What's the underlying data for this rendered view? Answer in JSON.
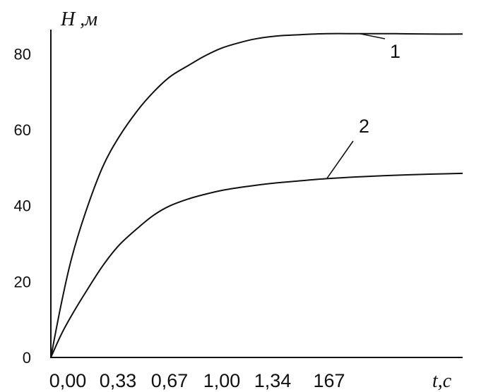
{
  "chart_data": {
    "type": "line",
    "ylabel": "H ,м",
    "xlabel": "t,c",
    "x_tick_labels": [
      "0,00",
      "0,33",
      "0,67",
      "1,00",
      "1,34",
      "167"
    ],
    "y_ticks": [
      0,
      20,
      40,
      60,
      80
    ],
    "ylim": [
      0,
      86
    ],
    "xlim": [
      0,
      2.0
    ],
    "grid": false,
    "series": [
      {
        "name": "1",
        "x": [
          0,
          0.05,
          0.1,
          0.167,
          0.25,
          0.33,
          0.42,
          0.5,
          0.58,
          0.67,
          0.75,
          0.83,
          0.92,
          1.0,
          1.1,
          1.2,
          1.34,
          1.5,
          1.67,
          1.84,
          2.0
        ],
        "values": [
          0,
          14,
          26,
          38,
          50,
          58,
          65,
          70,
          74,
          77,
          79.5,
          81.5,
          83,
          84,
          84.7,
          85,
          85.3,
          85.3,
          85.3,
          85.2,
          85.2
        ]
      },
      {
        "name": "2",
        "x": [
          0,
          0.05,
          0.1,
          0.167,
          0.25,
          0.33,
          0.42,
          0.5,
          0.58,
          0.67,
          0.75,
          0.83,
          0.92,
          1.0,
          1.1,
          1.2,
          1.34,
          1.5,
          1.67,
          1.84,
          2.0
        ],
        "values": [
          0,
          6,
          11,
          17,
          24,
          29.5,
          34,
          37.5,
          40,
          41.8,
          43,
          44,
          44.8,
          45.4,
          46,
          46.5,
          47.1,
          47.6,
          48,
          48.3,
          48.5
        ]
      }
    ]
  }
}
